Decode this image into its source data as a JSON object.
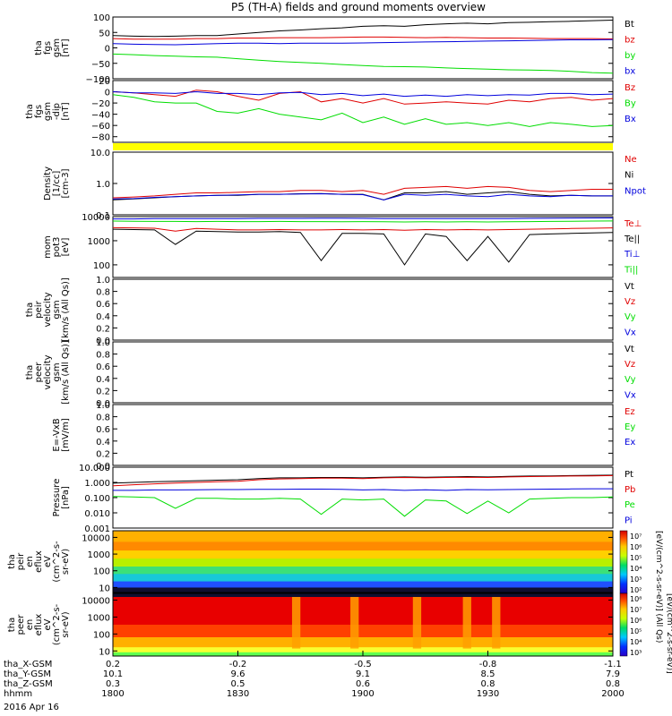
{
  "title": "P5 (TH-A) fields and ground moments overview",
  "date_label": "2016 Apr 16",
  "time_axis": {
    "rows": [
      {
        "label": "tha_X-GSM",
        "values": [
          "0.2",
          "-0.2",
          "-0.5",
          "-0.8",
          "-1.1"
        ]
      },
      {
        "label": "tha_Y-GSM",
        "values": [
          "10.1",
          "9.6",
          "9.1",
          "8.5",
          "7.9"
        ]
      },
      {
        "label": "tha_Z-GSM",
        "values": [
          "0.3",
          "0.5",
          "0.6",
          "0.8",
          "0.8"
        ]
      },
      {
        "label": "hhmm",
        "values": [
          "1800",
          "1830",
          "1900",
          "1930",
          "2000"
        ]
      }
    ]
  },
  "colors": {
    "black": "#000000",
    "red": "#e00000",
    "green": "#00dd00",
    "blue": "#0000dd",
    "yellow": "#ffff00"
  },
  "colorbar": {
    "label_top": "[eV/(cm^2-s-sr-eV)] (All Qs)",
    "label_bottom": "[eV/(cm^2-s-sr-eV)]",
    "ticks_top": [
      "10⁷",
      "10⁶",
      "10⁵",
      "10⁴",
      "10³",
      "10²"
    ],
    "ticks_bottom": [
      "10⁸",
      "10⁷",
      "10⁶",
      "10⁵",
      "10⁴",
      "10³"
    ]
  },
  "chart_data": [
    {
      "id": "fgs_gsm",
      "type": "line",
      "ylabel": [
        "tha",
        "fgs",
        "gsm",
        "[nT]"
      ],
      "yticks": [
        "100",
        "50",
        "0",
        "−50",
        "−100"
      ],
      "ylim": [
        -100,
        100
      ],
      "x": [
        0,
        5,
        10,
        15,
        20,
        25,
        30,
        35,
        40,
        45,
        50,
        55,
        60,
        65,
        70,
        75,
        80,
        85,
        90,
        95,
        100,
        105,
        110,
        115,
        120
      ],
      "series": [
        {
          "name": "Bt",
          "color": "black",
          "values": [
            40,
            38,
            37,
            38,
            40,
            40,
            45,
            50,
            55,
            58,
            62,
            65,
            70,
            72,
            70,
            75,
            78,
            80,
            78,
            82,
            83,
            85,
            86,
            88,
            90
          ]
        },
        {
          "name": "bz",
          "color": "red",
          "values": [
            30,
            28,
            28,
            28,
            30,
            30,
            32,
            32,
            33,
            33,
            33,
            34,
            35,
            35,
            34,
            33,
            34,
            33,
            32,
            32,
            31,
            30,
            30,
            30,
            29
          ]
        },
        {
          "name": "by",
          "color": "green",
          "values": [
            -20,
            -22,
            -25,
            -27,
            -29,
            -30,
            -35,
            -40,
            -44,
            -47,
            -50,
            -54,
            -57,
            -60,
            -61,
            -62,
            -65,
            -67,
            -69,
            -71,
            -72,
            -73,
            -76,
            -80,
            -82
          ]
        },
        {
          "name": "bx",
          "color": "blue",
          "values": [
            14,
            12,
            11,
            10,
            12,
            14,
            15,
            15,
            14,
            15,
            15,
            15,
            16,
            17,
            18,
            19,
            20,
            21,
            22,
            23,
            24,
            25,
            26,
            26,
            27
          ]
        }
      ]
    },
    {
      "id": "fgs_gsm_dip",
      "type": "line",
      "ylabel": [
        "tha",
        "fgs",
        "gsm",
        "-dip",
        "[nT]"
      ],
      "yticks": [
        "20",
        "0",
        "−20",
        "−40",
        "−60",
        "−80"
      ],
      "ylim": [
        -90,
        20
      ],
      "x": [
        0,
        5,
        10,
        15,
        20,
        25,
        30,
        35,
        40,
        45,
        50,
        55,
        60,
        65,
        70,
        75,
        80,
        85,
        90,
        95,
        100,
        105,
        110,
        115,
        120
      ],
      "series": [
        {
          "name": "Bz",
          "color": "red",
          "values": [
            0,
            -2,
            -5,
            -8,
            3,
            0,
            -8,
            -15,
            -3,
            0,
            -18,
            -12,
            -20,
            -12,
            -22,
            -20,
            -18,
            -20,
            -22,
            -15,
            -18,
            -12,
            -10,
            -15,
            -12
          ]
        },
        {
          "name": "By",
          "color": "green",
          "values": [
            -5,
            -10,
            -18,
            -20,
            -20,
            -35,
            -38,
            -30,
            -40,
            -45,
            -50,
            -38,
            -55,
            -45,
            -58,
            -48,
            -58,
            -55,
            -60,
            -55,
            -62,
            -55,
            -58,
            -62,
            -60
          ]
        },
        {
          "name": "Bx",
          "color": "blue",
          "values": [
            0,
            -2,
            -2,
            -3,
            0,
            -3,
            -3,
            -5,
            -2,
            -1,
            -5,
            -3,
            -7,
            -4,
            -8,
            -6,
            -8,
            -5,
            -7,
            -5,
            -6,
            -3,
            -3,
            -5,
            -4
          ]
        }
      ]
    },
    {
      "id": "density",
      "type": "line",
      "scale": "log",
      "ylabel": [
        "Density",
        "[1/cc]",
        "[cm-3]"
      ],
      "yticks": [
        "10.0",
        "1.0",
        "0.1"
      ],
      "ylim": [
        0.1,
        10
      ],
      "x": [
        0,
        5,
        10,
        15,
        20,
        25,
        30,
        35,
        40,
        45,
        50,
        55,
        60,
        65,
        70,
        75,
        80,
        85,
        90,
        95,
        100,
        105,
        110,
        115,
        120
      ],
      "series": [
        {
          "name": "Ne",
          "color": "red",
          "values": [
            0.35,
            0.37,
            0.4,
            0.45,
            0.5,
            0.5,
            0.52,
            0.55,
            0.55,
            0.6,
            0.6,
            0.55,
            0.6,
            0.45,
            0.7,
            0.75,
            0.8,
            0.7,
            0.8,
            0.75,
            0.6,
            0.55,
            0.6,
            0.65,
            0.65
          ]
        },
        {
          "name": "Ni",
          "color": "black",
          "values": [
            0.3,
            0.32,
            0.35,
            0.38,
            0.4,
            0.42,
            0.42,
            0.45,
            0.45,
            0.47,
            0.48,
            0.45,
            0.45,
            0.3,
            0.5,
            0.5,
            0.55,
            0.45,
            0.5,
            0.55,
            0.45,
            0.4,
            0.42,
            0.4,
            0.4
          ]
        },
        {
          "name": "Npot",
          "color": "blue",
          "values": [
            0.32,
            0.33,
            0.36,
            0.38,
            0.4,
            0.42,
            0.43,
            0.45,
            0.45,
            0.46,
            0.47,
            0.45,
            0.44,
            0.3,
            0.45,
            0.42,
            0.45,
            0.4,
            0.38,
            0.45,
            0.4,
            0.38,
            0.42,
            0.4,
            0.4
          ]
        }
      ]
    },
    {
      "id": "temperature",
      "type": "line",
      "scale": "log",
      "ylabel": [
        "mom",
        "pot3",
        "[eV]"
      ],
      "yticks": [
        "10000",
        "1000",
        "100"
      ],
      "ylim": [
        30,
        10000
      ],
      "x": [
        0,
        5,
        10,
        15,
        20,
        25,
        30,
        35,
        40,
        45,
        50,
        55,
        60,
        65,
        70,
        75,
        80,
        85,
        90,
        95,
        100,
        105,
        110,
        115,
        120
      ],
      "series": [
        {
          "name": "Te⊥",
          "color": "red",
          "values": [
            3500,
            3400,
            3300,
            2500,
            3200,
            3000,
            2800,
            2800,
            2900,
            2800,
            2800,
            2900,
            2800,
            2900,
            2700,
            2900,
            2800,
            2900,
            2800,
            2900,
            3000,
            3100,
            3200,
            3300,
            3400
          ]
        },
        {
          "name": "Te||",
          "color": "black",
          "values": [
            3000,
            2900,
            2800,
            700,
            2500,
            2400,
            2300,
            2300,
            2400,
            2200,
            150,
            2000,
            2000,
            1900,
            100,
            1900,
            1500,
            150,
            1500,
            130,
            1800,
            1900,
            2000,
            2100,
            2200
          ]
        },
        {
          "name": "Ti⊥",
          "color": "blue",
          "values": [
            8000,
            8000,
            8200,
            8200,
            8200,
            8300,
            8300,
            8400,
            8400,
            8400,
            8500,
            8500,
            8400,
            8300,
            8200,
            8300,
            8200,
            8300,
            8200,
            8300,
            8400,
            8500,
            8600,
            8700,
            8800
          ]
        },
        {
          "name": "Ti||",
          "color": "green",
          "values": [
            6500,
            6400,
            6300,
            6300,
            6200,
            6300,
            6200,
            6200,
            6300,
            6200,
            6200,
            6100,
            6200,
            6100,
            6000,
            6100,
            6000,
            6100,
            6000,
            6100,
            6200,
            6300,
            6400,
            6500,
            6600
          ]
        }
      ]
    },
    {
      "id": "peir_velocity",
      "type": "line",
      "ylabel": [
        "tha",
        "peir",
        "velocity",
        "gsm",
        "[km/s (All Qs)]"
      ],
      "yticks": [
        "1.0",
        "0.8",
        "0.6",
        "0.4",
        "0.2",
        "0.0"
      ],
      "ylim": [
        0,
        1
      ],
      "x": [],
      "series": [
        {
          "name": "Vt",
          "color": "black",
          "values": []
        },
        {
          "name": "Vz",
          "color": "red",
          "values": []
        },
        {
          "name": "Vy",
          "color": "green",
          "values": []
        },
        {
          "name": "Vx",
          "color": "blue",
          "values": []
        }
      ]
    },
    {
      "id": "peer_velocity",
      "type": "line",
      "ylabel": [
        "tha",
        "peer",
        "velocity",
        "gsm",
        "[km/s (All Qs)]"
      ],
      "yticks": [
        "1.0",
        "0.8",
        "0.6",
        "0.4",
        "0.2",
        "0.0"
      ],
      "ylim": [
        0,
        1
      ],
      "x": [],
      "series": [
        {
          "name": "Vt",
          "color": "black",
          "values": []
        },
        {
          "name": "Vz",
          "color": "red",
          "values": []
        },
        {
          "name": "Vy",
          "color": "green",
          "values": []
        },
        {
          "name": "Vx",
          "color": "blue",
          "values": []
        }
      ]
    },
    {
      "id": "vxb",
      "type": "line",
      "ylabel": [
        "E=-VxB",
        "[mV/m]"
      ],
      "yticks": [
        "1.0",
        "0.8",
        "0.6",
        "0.4",
        "0.2",
        "0.0"
      ],
      "ylim": [
        0,
        1
      ],
      "x": [],
      "series": [
        {
          "name": "Ez",
          "color": "red",
          "values": []
        },
        {
          "name": "Ey",
          "color": "green",
          "values": []
        },
        {
          "name": "Ex",
          "color": "blue",
          "values": []
        }
      ]
    },
    {
      "id": "pressure",
      "type": "line",
      "scale": "log",
      "ylabel": [
        "Pressure",
        "[nPa]"
      ],
      "yticks": [
        "10.000",
        "1.000",
        "0.100",
        "0.010",
        "0.001"
      ],
      "ylim": [
        0.001,
        10
      ],
      "x": [
        0,
        5,
        10,
        15,
        20,
        25,
        30,
        35,
        40,
        45,
        50,
        55,
        60,
        65,
        70,
        75,
        80,
        85,
        90,
        95,
        100,
        105,
        110,
        115,
        120
      ],
      "series": [
        {
          "name": "Pt",
          "color": "black",
          "values": [
            0.9,
            1.0,
            1.1,
            1.2,
            1.3,
            1.4,
            1.5,
            1.8,
            2.0,
            2.0,
            2.1,
            2.1,
            2.0,
            2.2,
            2.3,
            2.2,
            2.3,
            2.4,
            2.3,
            2.5,
            2.6,
            2.7,
            2.8,
            2.9,
            3.0
          ]
        },
        {
          "name": "Pb",
          "color": "red",
          "values": [
            0.6,
            0.7,
            0.8,
            0.9,
            1.0,
            1.1,
            1.2,
            1.5,
            1.7,
            1.8,
            1.9,
            1.9,
            1.8,
            2.0,
            2.1,
            2.0,
            2.1,
            2.2,
            2.1,
            2.3,
            2.4,
            2.5,
            2.6,
            2.7,
            2.8
          ]
        },
        {
          "name": "Pe",
          "color": "green",
          "values": [
            0.12,
            0.11,
            0.1,
            0.02,
            0.09,
            0.09,
            0.08,
            0.08,
            0.09,
            0.08,
            0.008,
            0.08,
            0.07,
            0.08,
            0.006,
            0.07,
            0.06,
            0.009,
            0.06,
            0.01,
            0.08,
            0.09,
            0.1,
            0.1,
            0.11
          ]
        },
        {
          "name": "Pi",
          "color": "blue",
          "values": [
            0.3,
            0.3,
            0.32,
            0.32,
            0.33,
            0.34,
            0.34,
            0.35,
            0.35,
            0.36,
            0.36,
            0.35,
            0.32,
            0.34,
            0.3,
            0.33,
            0.3,
            0.34,
            0.33,
            0.34,
            0.35,
            0.36,
            0.37,
            0.38,
            0.38
          ]
        }
      ]
    },
    {
      "id": "peir_spectrogram",
      "type": "heatmap",
      "scale": "log",
      "ylabel": [
        "tha",
        "peir",
        "en",
        "eflux",
        "eV",
        "(cm^2-s-",
        "sr-eV)"
      ],
      "yticks": [
        "10000",
        "1000",
        "100",
        "10"
      ],
      "ylim": [
        5,
        25000
      ]
    },
    {
      "id": "peer_spectrogram",
      "type": "heatmap",
      "scale": "log",
      "ylabel": [
        "tha",
        "peer",
        "en",
        "eflux",
        "eV",
        "(cm^2-s-",
        "sr-eV)"
      ],
      "yticks": [
        "10000",
        "1000",
        "100",
        "10"
      ],
      "ylim": [
        5,
        25000
      ]
    }
  ]
}
